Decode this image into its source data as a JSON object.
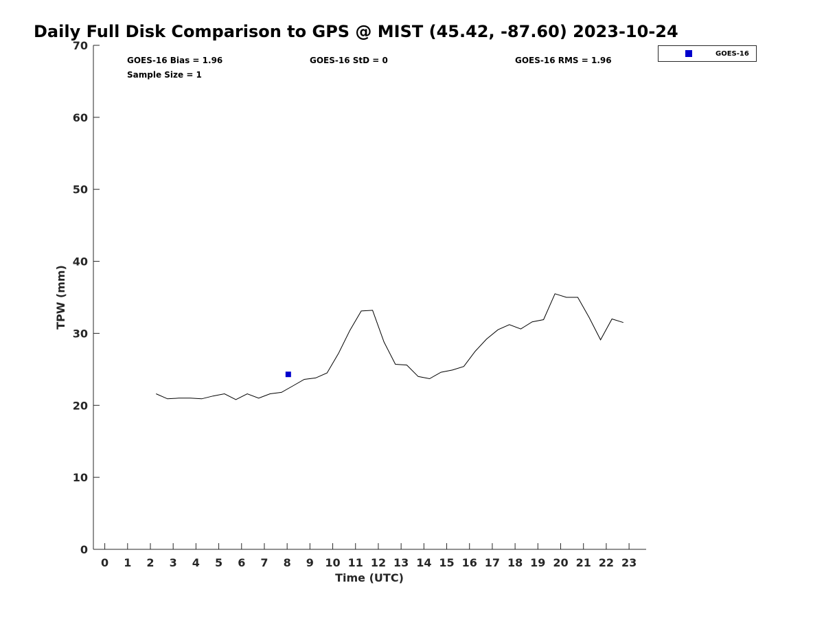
{
  "chart_data": {
    "type": "line",
    "title": "Daily Full Disk Comparison to GPS @ MIST (45.42, -87.60) 2023-10-24",
    "xlabel": "Time (UTC)",
    "ylabel": "TPW (mm)",
    "xlim": [
      -0.5,
      23.75
    ],
    "ylim": [
      0,
      70
    ],
    "x_ticks": [
      "0",
      "1",
      "2",
      "3",
      "4",
      "5",
      "6",
      "7",
      "8",
      "9",
      "10",
      "11",
      "12",
      "13",
      "14",
      "15",
      "16",
      "17",
      "18",
      "19",
      "20",
      "21",
      "22",
      "23"
    ],
    "y_ticks": [
      "0",
      "10",
      "20",
      "30",
      "40",
      "50",
      "60",
      "70"
    ],
    "grid": false,
    "legend_position": "top-right",
    "stats": {
      "bias": "GOES-16 Bias = 1.96",
      "std": "GOES-16 StD = 0",
      "rms": "GOES-16 RMS = 1.96",
      "sample_size": "Sample Size = 1"
    },
    "series": [
      {
        "kind": "line",
        "color": "#000000",
        "x": [
          2.25,
          2.75,
          3.25,
          3.75,
          4.25,
          4.75,
          5.25,
          5.75,
          6.25,
          6.75,
          7.25,
          7.75,
          8.25,
          8.75,
          9.25,
          9.75,
          10.25,
          10.75,
          11.25,
          11.75,
          12.25,
          12.75,
          13.25,
          13.75,
          14.25,
          14.75,
          15.25,
          15.75,
          16.25,
          16.75,
          17.25,
          17.75,
          18.25,
          18.75,
          19.25,
          19.75,
          20.25,
          20.75,
          21.25,
          21.75,
          22.25,
          22.75
        ],
        "y": [
          21.6,
          20.9,
          21.0,
          21.0,
          20.9,
          21.3,
          21.6,
          20.8,
          21.6,
          21.0,
          21.6,
          21.8,
          22.7,
          23.6,
          23.8,
          24.5,
          27.2,
          30.4,
          33.1,
          33.2,
          28.8,
          25.7,
          25.6,
          24.0,
          23.7,
          24.6,
          24.9,
          25.4,
          27.5,
          29.2,
          30.5,
          31.2,
          30.6,
          31.6,
          31.9,
          35.5,
          35.0,
          35.0,
          32.2,
          29.1,
          32.0,
          31.5
        ]
      },
      {
        "name": "GOES-16",
        "kind": "marker",
        "color": "#0000cc",
        "x": [
          8.05
        ],
        "y": [
          24.3
        ]
      }
    ]
  }
}
